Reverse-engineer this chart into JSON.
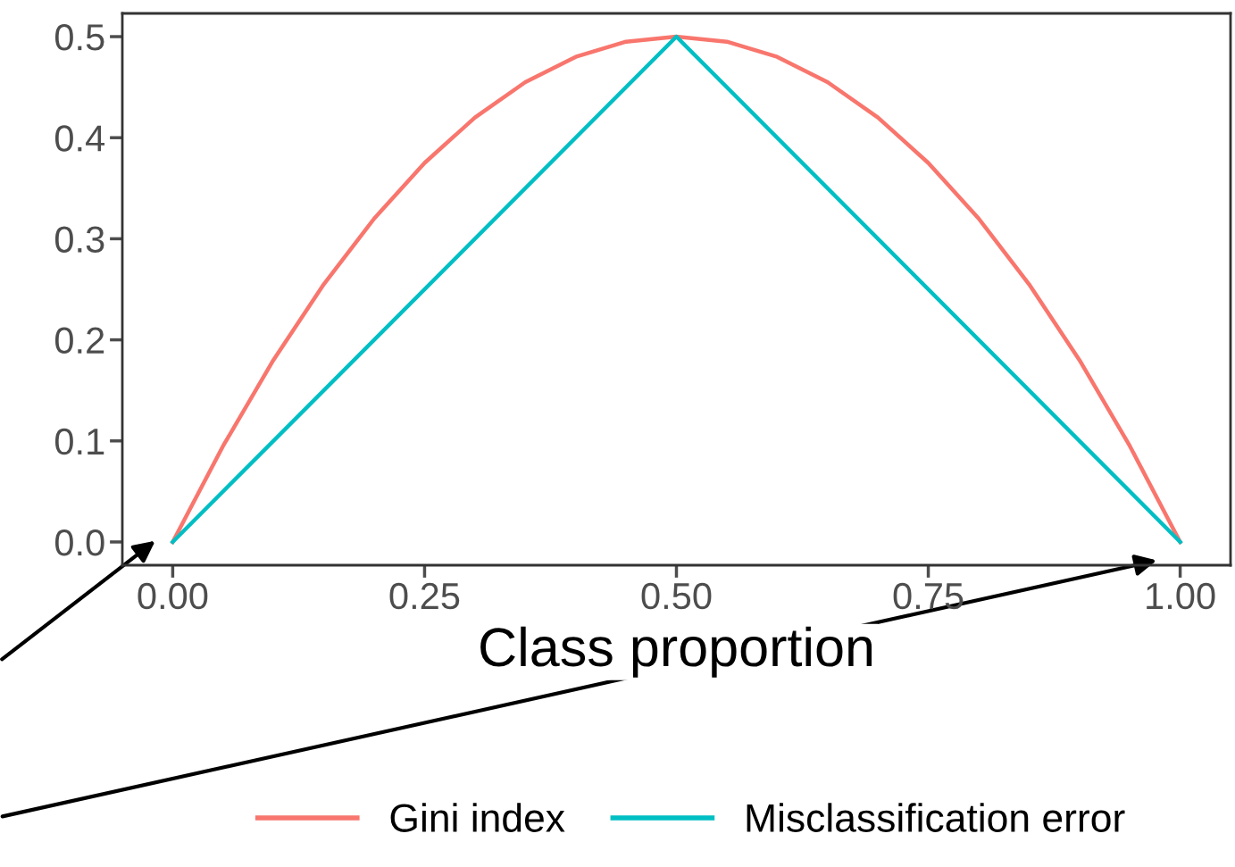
{
  "chart_data": {
    "type": "line",
    "xlabel": "Class proportion",
    "x": [
      0,
      0.05,
      0.1,
      0.15,
      0.2,
      0.25,
      0.3,
      0.35,
      0.4,
      0.45,
      0.5,
      0.55,
      0.6,
      0.65,
      0.7,
      0.75,
      0.8,
      0.85,
      0.9,
      0.95,
      1
    ],
    "series": [
      {
        "name": "Gini index",
        "color": "#f8766d",
        "values": [
          0,
          0.095,
          0.18,
          0.255,
          0.32,
          0.375,
          0.42,
          0.455,
          0.48,
          0.495,
          0.5,
          0.495,
          0.48,
          0.455,
          0.42,
          0.375,
          0.32,
          0.255,
          0.18,
          0.095,
          0
        ]
      },
      {
        "name": "Misclassification error",
        "color": "#00bfc4",
        "x": [
          0,
          0.5,
          1
        ],
        "values": [
          0,
          0.5,
          0
        ]
      }
    ],
    "xlim": [
      -0.05,
      1.05
    ],
    "ylim": [
      -0.023,
      0.523
    ],
    "xticks": [
      {
        "value": 0,
        "label": "0.00"
      },
      {
        "value": 0.25,
        "label": "0.25"
      },
      {
        "value": 0.5,
        "label": "0.50"
      },
      {
        "value": 0.75,
        "label": "0.75"
      },
      {
        "value": 1,
        "label": "1.00"
      }
    ],
    "yticks": [
      {
        "value": 0,
        "label": "0.0"
      },
      {
        "value": 0.1,
        "label": "0.1"
      },
      {
        "value": 0.2,
        "label": "0.2"
      },
      {
        "value": 0.3,
        "label": "0.3"
      },
      {
        "value": 0.4,
        "label": "0.4"
      },
      {
        "value": 0.5,
        "label": "0.5"
      }
    ],
    "grid": false,
    "legend": "bottom",
    "line_style": "solid",
    "marker": "none"
  }
}
